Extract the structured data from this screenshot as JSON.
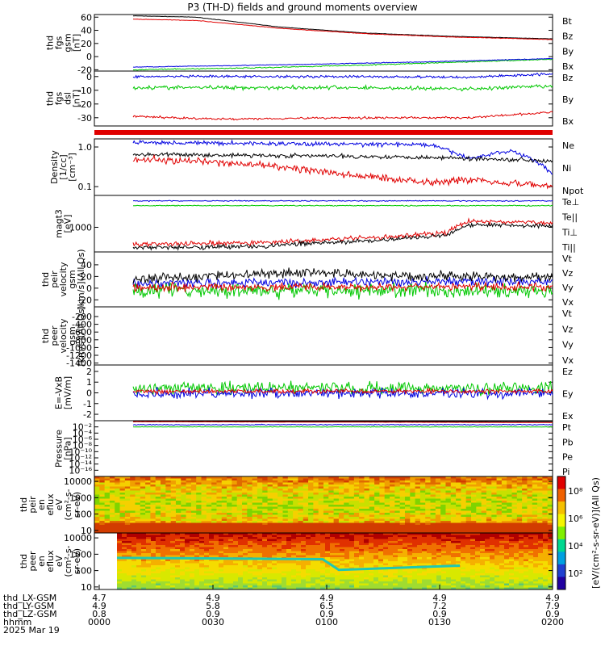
{
  "title": "P3 (TH-D) fields and ground moments overview",
  "colors": {
    "black": "#000000",
    "red": "#e00000",
    "green": "#00c800",
    "blue": "#0000e0"
  },
  "panels": [
    {
      "id": "fgs",
      "ylabel": [
        "thd",
        "fgs",
        "gsm",
        "[nT]"
      ],
      "scale": "linear",
      "ylim": [
        -22,
        64
      ],
      "ticks": [
        {
          "v": 60,
          "l": "60"
        },
        {
          "v": 40,
          "l": "40"
        },
        {
          "v": 20,
          "l": "20"
        },
        {
          "v": 0,
          "l": "0"
        },
        {
          "v": -20,
          "l": "-20"
        }
      ],
      "legend": [
        {
          "name": "Bt",
          "color": "#000000"
        },
        {
          "name": "Bz",
          "color": "#e00000"
        },
        {
          "name": "By",
          "color": "#00c800"
        },
        {
          "name": "Bx",
          "color": "#0000e0"
        }
      ]
    },
    {
      "id": "fgs-dsl",
      "ylabel": [
        "thd",
        "fgs",
        "dsl",
        "[nT]"
      ],
      "scale": "linear",
      "ylim": [
        -36,
        4
      ],
      "ticks": [
        {
          "v": 0,
          "l": "0"
        },
        {
          "v": -10,
          "l": "-10"
        },
        {
          "v": -20,
          "l": "-20"
        },
        {
          "v": -30,
          "l": "-30"
        }
      ],
      "legend": [
        {
          "name": "Bz",
          "color": "#e00000"
        },
        {
          "name": "By",
          "color": "#00c800"
        },
        {
          "name": "Bx",
          "color": "#0000e0"
        }
      ]
    },
    {
      "id": "density",
      "ylabel": [
        "Density",
        "[1/cc]",
        "[cm⁻³]"
      ],
      "scale": "log",
      "ylim": [
        0.06,
        1.6
      ],
      "ticks": [
        {
          "v": 1.0,
          "l": "1.0"
        },
        {
          "v": 0.1,
          "l": "0.1"
        }
      ],
      "legend": [
        {
          "name": "Ne",
          "color": "#e00000"
        },
        {
          "name": "Ni",
          "color": "#000000"
        },
        {
          "name": "Npot",
          "color": "#0000e0"
        }
      ]
    },
    {
      "id": "temp",
      "ylabel": [
        "magt3",
        "[eV]"
      ],
      "scale": "log",
      "ylim": [
        200,
        8000
      ],
      "ticks": [
        {
          "v": 1000,
          "l": "1000"
        }
      ],
      "legend": [
        {
          "name": "Te⊥",
          "color": "#e00000"
        },
        {
          "name": "Te||",
          "color": "#000000"
        },
        {
          "name": "Ti⊥",
          "color": "#e00000"
        },
        {
          "name": "Ti||",
          "color": "#00c800"
        }
      ]
    },
    {
      "id": "peir-vel",
      "ylabel": [
        "thd",
        "peir",
        "velocity",
        "gsm",
        "[km/s](All Qs)"
      ],
      "scale": "linear",
      "ylim": [
        -32,
        62
      ],
      "ticks": [
        {
          "v": 40,
          "l": "40"
        },
        {
          "v": 20,
          "l": "20"
        },
        {
          "v": 0,
          "l": "0"
        },
        {
          "v": -20,
          "l": "-20"
        }
      ],
      "legend": [
        {
          "name": "Vt",
          "color": "#000000"
        },
        {
          "name": "Vz",
          "color": "#e00000"
        },
        {
          "name": "Vy",
          "color": "#00c800"
        },
        {
          "name": "Vx",
          "color": "#0000e0"
        }
      ]
    },
    {
      "id": "peer-vel",
      "ylabel": [
        "thd",
        "peer",
        "velocity",
        "gsm",
        "[km/s](All Qs)"
      ],
      "scale": "linear",
      "ylim": [
        -1450,
        50
      ],
      "ticks": [
        {
          "v": -200,
          "l": "-200"
        },
        {
          "v": -400,
          "l": "-400"
        },
        {
          "v": -600,
          "l": "-600"
        },
        {
          "v": -800,
          "l": "-800"
        },
        {
          "v": -1000,
          "l": "-1000"
        },
        {
          "v": -1200,
          "l": "-1200"
        },
        {
          "v": -1400,
          "l": "-1400"
        }
      ],
      "legend": [
        {
          "name": "Vt",
          "color": "#000000"
        },
        {
          "name": "Vz",
          "color": "#e00000"
        },
        {
          "name": "Vy",
          "color": "#00c800"
        },
        {
          "name": "Vx",
          "color": "#0000e0"
        }
      ]
    },
    {
      "id": "efield",
      "ylabel": [
        "E=-VxB",
        "[mV/m]"
      ],
      "scale": "linear",
      "ylim": [
        -2.6,
        2.6
      ],
      "ticks": [
        {
          "v": 2,
          "l": "2"
        },
        {
          "v": 1,
          "l": "1"
        },
        {
          "v": 0,
          "l": "0"
        },
        {
          "v": -1,
          "l": "-1"
        },
        {
          "v": -2,
          "l": "-2"
        }
      ],
      "legend": [
        {
          "name": "Ez",
          "color": "#e00000"
        },
        {
          "name": "Ey",
          "color": "#00c800"
        },
        {
          "name": "Ex",
          "color": "#0000e0"
        }
      ]
    },
    {
      "id": "pressure",
      "ylabel": [
        "Pressure",
        "[nPa]"
      ],
      "scale": "log",
      "ylim": [
        1e-18,
        1
      ],
      "ticks": [
        {
          "v": 0.01,
          "l": "10⁻²"
        },
        {
          "v": 0.0001,
          "l": "10⁻⁴"
        },
        {
          "v": 1e-06,
          "l": "10⁻⁶"
        },
        {
          "v": 1e-08,
          "l": "10⁻⁸"
        },
        {
          "v": 1e-10,
          "l": "10⁻¹⁰"
        },
        {
          "v": 1e-12,
          "l": "10⁻¹²"
        },
        {
          "v": 1e-14,
          "l": "10⁻¹⁴"
        },
        {
          "v": 1e-16,
          "l": "10⁻¹⁶"
        }
      ],
      "legend": [
        {
          "name": "Pt",
          "color": "#000000"
        },
        {
          "name": "Pb",
          "color": "#e00000"
        },
        {
          "name": "Pe",
          "color": "#00c800"
        },
        {
          "name": "Pi",
          "color": "#0000e0"
        }
      ]
    },
    {
      "id": "peir-flux",
      "ylabel": [
        "thd",
        "peir",
        "en",
        "eflux",
        "eV",
        "(cm²-s-",
        "sr-eV)"
      ],
      "scale": "log",
      "ylim": [
        7,
        20000
      ],
      "ticks": [
        {
          "v": 10000,
          "l": "10000"
        },
        {
          "v": 1000,
          "l": "1000"
        },
        {
          "v": 100,
          "l": "100"
        },
        {
          "v": 10,
          "l": "10"
        }
      ],
      "legend": []
    },
    {
      "id": "peer-flux",
      "ylabel": [
        "thd",
        "peer",
        "en",
        "eflux",
        "eV",
        "(cm²-s-",
        "sr-eV)"
      ],
      "scale": "log",
      "ylim": [
        7,
        20000
      ],
      "ticks": [
        {
          "v": 10000,
          "l": "10000"
        },
        {
          "v": 1000,
          "l": "1000"
        },
        {
          "v": 100,
          "l": "100"
        },
        {
          "v": 10,
          "l": "10"
        }
      ],
      "legend": []
    }
  ],
  "colorbar": {
    "label": "[eV/(cm²-s-sr-eV)](All Qs)",
    "ticks": [
      "10⁸",
      "10⁶",
      "10⁴",
      "10²"
    ]
  },
  "xaxis": {
    "rows": [
      {
        "name": "thd_LX-GSM",
        "values": [
          "4.7",
          "4.9",
          "4.9",
          "4.9",
          "4.9"
        ]
      },
      {
        "name": "thd_LY-GSM",
        "values": [
          "4.9",
          "5.8",
          "6.5",
          "7.2",
          "7.9"
        ]
      },
      {
        "name": "thd_LZ-GSM",
        "values": [
          "0.8",
          "0.9",
          "0.9",
          "0.9",
          "0.9"
        ]
      },
      {
        "name": "hhmm",
        "values": [
          "0000",
          "0030",
          "0100",
          "0130",
          "0200"
        ]
      }
    ],
    "date": "2025 Mar 19"
  }
}
